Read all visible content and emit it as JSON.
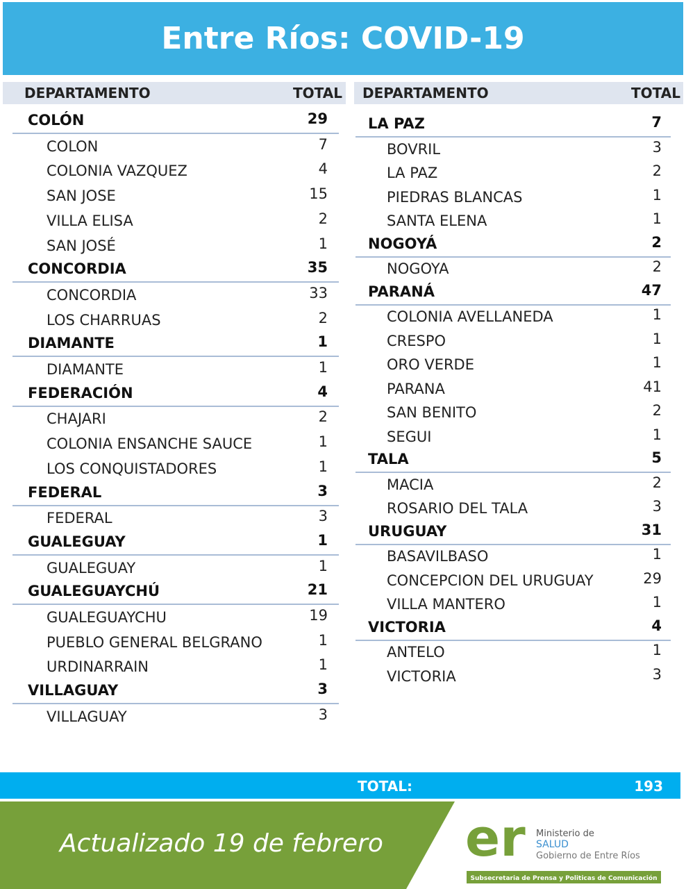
{
  "header": {
    "title": "Entre Ríos: COVID-19"
  },
  "tables": [
    {
      "col_headers": [
        "DEPARTAMENTO",
        "TOTAL"
      ],
      "groups": [
        {
          "name": "COLÓN",
          "total": 29,
          "rows": [
            [
              "COLON",
              7
            ],
            [
              "COLONIA VAZQUEZ",
              4
            ],
            [
              "SAN JOSE",
              15
            ],
            [
              "VILLA ELISA",
              2
            ],
            [
              "SAN JOSÉ",
              1
            ]
          ]
        },
        {
          "name": "CONCORDIA",
          "total": 35,
          "rows": [
            [
              "CONCORDIA",
              33
            ],
            [
              "LOS CHARRUAS",
              2
            ]
          ]
        },
        {
          "name": "DIAMANTE",
          "total": 1,
          "rows": [
            [
              "DIAMANTE",
              1
            ]
          ]
        },
        {
          "name": "FEDERACIÓN",
          "total": 4,
          "rows": [
            [
              "CHAJARI",
              2
            ],
            [
              "COLONIA ENSANCHE SAUCE",
              1
            ],
            [
              "LOS CONQUISTADORES",
              1
            ]
          ]
        },
        {
          "name": "FEDERAL",
          "total": 3,
          "rows": [
            [
              "FEDERAL",
              3
            ]
          ]
        },
        {
          "name": "GUALEGUAY",
          "total": 1,
          "rows": [
            [
              "GUALEGUAY",
              1
            ]
          ]
        },
        {
          "name": "GUALEGUAYCHÚ",
          "total": 21,
          "rows": [
            [
              "GUALEGUAYCHU",
              19
            ],
            [
              "PUEBLO GENERAL BELGRANO",
              1
            ],
            [
              "URDINARRAIN",
              1
            ]
          ]
        },
        {
          "name": "VILLAGUAY",
          "total": 3,
          "rows": [
            [
              "VILLAGUAY",
              3
            ]
          ]
        }
      ]
    },
    {
      "col_headers": [
        "DEPARTAMENTO",
        "TOTAL"
      ],
      "groups": [
        {
          "name": "LA PAZ",
          "total": 7,
          "rows": [
            [
              "BOVRIL",
              3
            ],
            [
              "LA PAZ",
              2
            ],
            [
              "PIEDRAS BLANCAS",
              1
            ],
            [
              "SANTA ELENA",
              1
            ]
          ]
        },
        {
          "name": "NOGOYÁ",
          "total": 2,
          "rows": [
            [
              "NOGOYA",
              2
            ]
          ]
        },
        {
          "name": "PARANÁ",
          "total": 47,
          "rows": [
            [
              "COLONIA AVELLANEDA",
              1
            ],
            [
              "CRESPO",
              1
            ],
            [
              "ORO VERDE",
              1
            ],
            [
              "PARANA",
              41
            ],
            [
              "SAN BENITO",
              2
            ],
            [
              "SEGUI",
              1
            ]
          ]
        },
        {
          "name": "TALA",
          "total": 5,
          "rows": [
            [
              "MACIA",
              2
            ],
            [
              "ROSARIO DEL TALA",
              3
            ]
          ]
        },
        {
          "name": "URUGUAY",
          "total": 31,
          "rows": [
            [
              "BASAVILBASO",
              1
            ],
            [
              "CONCEPCION DEL URUGUAY",
              29
            ],
            [
              "VILLA MANTERO",
              1
            ]
          ]
        },
        {
          "name": "VICTORIA",
          "total": 4,
          "rows": [
            [
              "ANTELO",
              1
            ],
            [
              "VICTORIA",
              3
            ]
          ]
        }
      ]
    }
  ],
  "total": {
    "label": "TOTAL:",
    "value": 193
  },
  "footer": {
    "updated": "Actualizado 19 de febrero",
    "logo": {
      "mark": "er",
      "line1": "Ministerio de",
      "line2": "SALUD",
      "line3": "Gobierno de Entre Ríos",
      "banner": "Subsecretaria de Prensa y Politicas de Comunicación"
    }
  }
}
